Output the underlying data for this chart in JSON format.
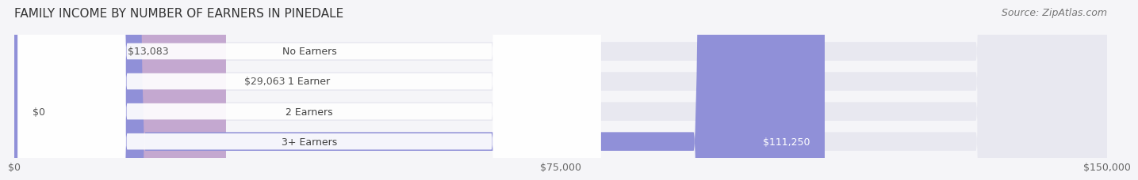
{
  "title": "FAMILY INCOME BY NUMBER OF EARNERS IN PINEDALE",
  "source": "Source: ZipAtlas.com",
  "categories": [
    "No Earners",
    "1 Earner",
    "2 Earners",
    "3+ Earners"
  ],
  "values": [
    13083,
    29063,
    0,
    111250
  ],
  "value_labels": [
    "$13,083",
    "$29,063",
    "$0",
    "$111,250"
  ],
  "bar_colors": [
    "#a8c4e0",
    "#c4a8d0",
    "#7dd4c8",
    "#9090d8"
  ],
  "bar_label_colors": [
    "#555555",
    "#555555",
    "#555555",
    "#ffffff"
  ],
  "xlim": [
    0,
    150000
  ],
  "xtick_values": [
    0,
    75000,
    150000
  ],
  "xtick_labels": [
    "$0",
    "$75,000",
    "$150,000"
  ],
  "background_color": "#f0f0f5",
  "bar_bg_color": "#e8e8f0",
  "title_fontsize": 11,
  "source_fontsize": 9,
  "label_fontsize": 9,
  "tick_fontsize": 9
}
